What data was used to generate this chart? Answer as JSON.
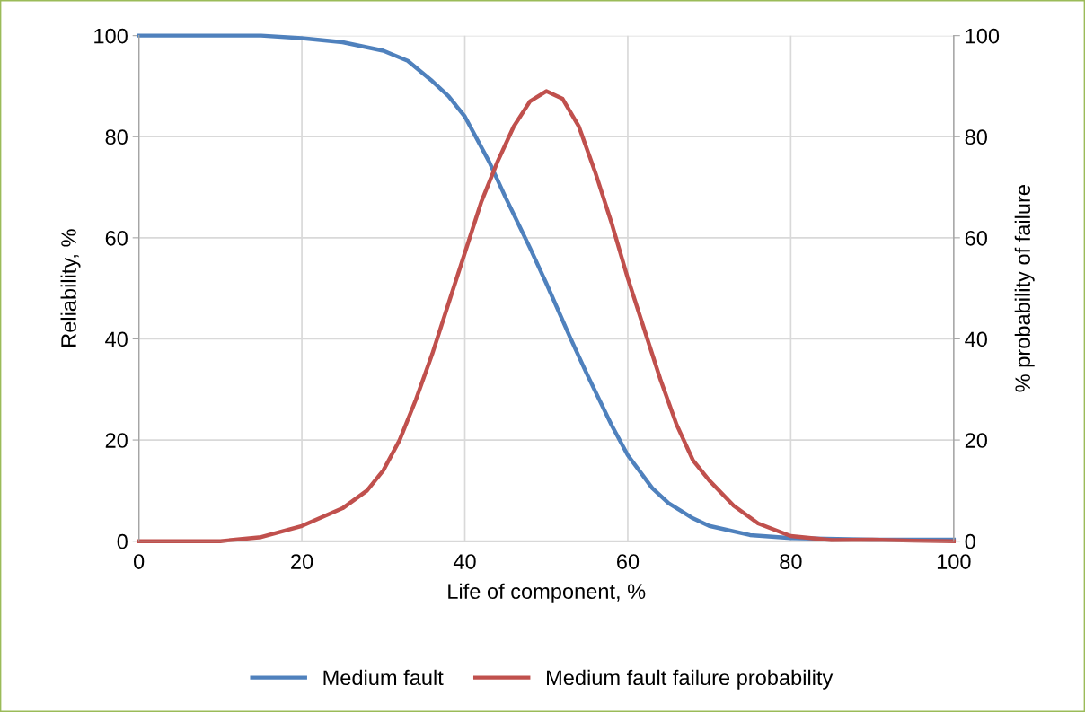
{
  "chart_data": {
    "type": "line",
    "xlabel": "Life of component, %",
    "ylabel": "Reliability, %",
    "y2label": "% probability of failure",
    "xlim": [
      0,
      100
    ],
    "xticks": [
      0,
      20,
      40,
      60,
      80,
      100
    ],
    "ylim": [
      0,
      100
    ],
    "yticks": [
      0,
      20,
      40,
      60,
      80,
      100
    ],
    "y2lim": [
      0,
      100
    ],
    "y2ticks": [
      0,
      20,
      40,
      60,
      80,
      100
    ],
    "grid": true,
    "legend": "bottom",
    "marker": "none",
    "line_style": "solid",
    "series": [
      {
        "name": "Medium fault",
        "color": "#4f81bd",
        "x": [
          0,
          5,
          10,
          15,
          20,
          25,
          30,
          33,
          36,
          38,
          40,
          43,
          45,
          48,
          50,
          53,
          55,
          58,
          60,
          63,
          65,
          68,
          70,
          75,
          80,
          90,
          100
        ],
        "values": [
          100,
          100,
          100,
          100,
          99.5,
          98.7,
          97,
          95,
          91,
          88,
          84,
          75,
          68,
          58,
          51,
          40,
          33,
          23,
          17,
          10.5,
          7.5,
          4.5,
          3,
          1.2,
          0.6,
          0.3,
          0.3
        ]
      },
      {
        "name": "Medium fault failure probability",
        "color": "#c0504d",
        "axis": "y2",
        "x": [
          0,
          5,
          10,
          15,
          20,
          25,
          28,
          30,
          32,
          34,
          36,
          38,
          40,
          42,
          44,
          46,
          48,
          50,
          52,
          54,
          56,
          58,
          60,
          62,
          64,
          66,
          68,
          70,
          73,
          76,
          80,
          85,
          90,
          95,
          100
        ],
        "values": [
          0,
          0,
          0,
          0.8,
          3,
          6.5,
          10,
          14,
          20,
          28,
          37,
          47,
          57,
          67,
          75,
          82,
          87,
          89,
          87.5,
          82,
          73,
          63,
          52,
          42,
          32,
          23,
          16,
          12,
          7,
          3.5,
          1,
          0.2,
          0.3,
          0.1,
          0
        ]
      }
    ]
  }
}
